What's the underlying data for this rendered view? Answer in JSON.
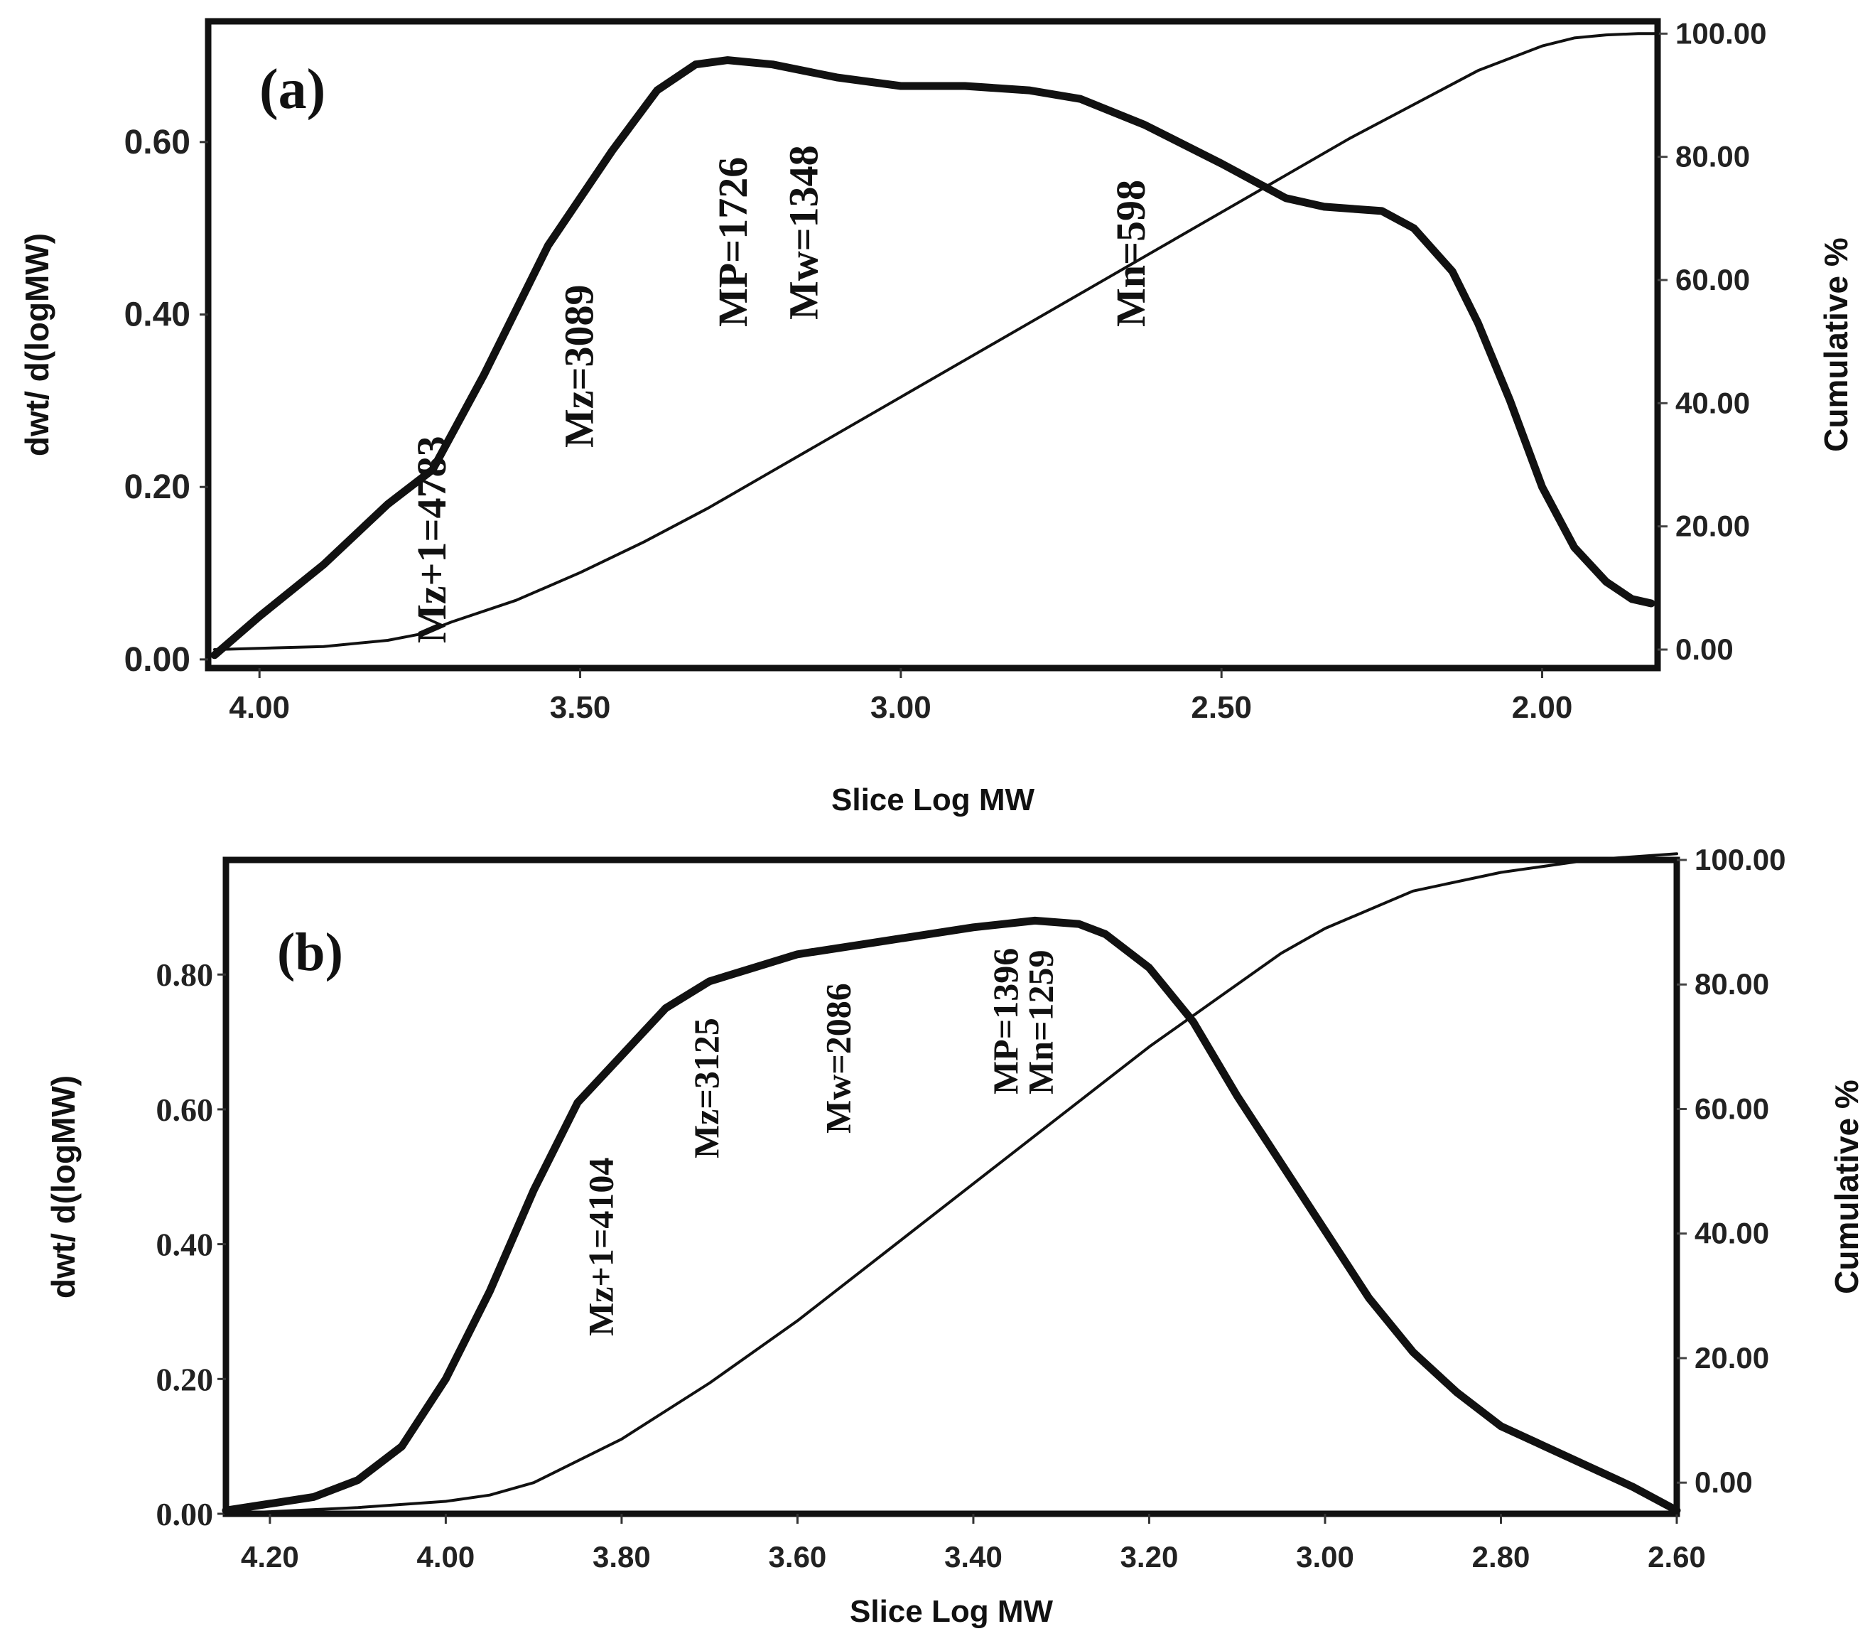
{
  "chart_data": [
    {
      "type": "line",
      "panel_label": "(a)",
      "xlabel": "Slice Log MW",
      "ylabel_left": "dwt/ d(logMW)",
      "ylabel_right": "Cumulative %",
      "xlim": [
        4.08,
        1.82
      ],
      "ylim_left": [
        -0.01,
        0.74
      ],
      "ylim_right": [
        -3,
        102
      ],
      "x_ticks": [
        "4.00",
        "3.50",
        "3.00",
        "2.50",
        "2.00"
      ],
      "y_left_ticks": [
        "0.00",
        "0.20",
        "0.40",
        "0.60"
      ],
      "y_right_ticks": [
        "0.00",
        "20.00",
        "40.00",
        "60.00",
        "80.00",
        "100.00"
      ],
      "series": [
        {
          "name": "dwt/d(logMW)",
          "axis": "left",
          "x": [
            4.07,
            4.0,
            3.9,
            3.8,
            3.73,
            3.65,
            3.55,
            3.45,
            3.38,
            3.32,
            3.27,
            3.2,
            3.1,
            3.0,
            2.9,
            2.8,
            2.72,
            2.62,
            2.5,
            2.4,
            2.34,
            2.25,
            2.2,
            2.14,
            2.1,
            2.05,
            2.0,
            1.95,
            1.9,
            1.86,
            1.83
          ],
          "y": [
            0.005,
            0.05,
            0.11,
            0.18,
            0.22,
            0.33,
            0.48,
            0.59,
            0.66,
            0.69,
            0.695,
            0.69,
            0.675,
            0.665,
            0.665,
            0.66,
            0.65,
            0.62,
            0.575,
            0.535,
            0.525,
            0.52,
            0.5,
            0.45,
            0.39,
            0.3,
            0.2,
            0.13,
            0.09,
            0.07,
            0.065
          ]
        },
        {
          "name": "Cumulative %",
          "axis": "right",
          "x": [
            4.07,
            3.9,
            3.8,
            3.75,
            3.7,
            3.6,
            3.5,
            3.4,
            3.3,
            3.2,
            3.1,
            3.0,
            2.9,
            2.8,
            2.7,
            2.6,
            2.5,
            2.4,
            2.3,
            2.2,
            2.1,
            2.0,
            1.95,
            1.9,
            1.85,
            1.82
          ],
          "y": [
            0.0,
            0.5,
            1.5,
            2.5,
            4.5,
            8.0,
            12.5,
            17.5,
            23.0,
            29.0,
            35.0,
            41.0,
            47.0,
            53.0,
            59.0,
            65.0,
            71.0,
            77.0,
            83.0,
            88.5,
            94.0,
            98.0,
            99.3,
            99.8,
            100.0,
            100.0
          ]
        }
      ],
      "annotations": [
        {
          "text": "Mz+1=4783",
          "x": 3.71
        },
        {
          "text": "Mz=3089",
          "x": 3.48
        },
        {
          "text": "MP=1726",
          "x": 3.24
        },
        {
          "text": "Mw=1348",
          "x": 3.13
        },
        {
          "text": "Mn=598",
          "x": 2.62
        }
      ]
    },
    {
      "type": "line",
      "panel_label": "(b)",
      "xlabel": "Slice Log MW",
      "ylabel_left": "dwt/ d(logMW)",
      "ylabel_right": "Cumulative %",
      "xlim": [
        4.25,
        2.6
      ],
      "ylim_left": [
        0.0,
        0.97
      ],
      "ylim_right": [
        -5,
        100
      ],
      "x_ticks": [
        "4.20",
        "4.00",
        "3.80",
        "3.60",
        "3.40",
        "3.20",
        "3.00",
        "2.80",
        "2.60"
      ],
      "y_left_ticks": [
        "0.00",
        "0.20",
        "0.40",
        "0.60",
        "0.80"
      ],
      "y_right_ticks": [
        "0.00",
        "20.00",
        "40.00",
        "60.00",
        "80.00",
        "100.00"
      ],
      "series": [
        {
          "name": "dwt/d(logMW)",
          "axis": "left",
          "x": [
            4.25,
            4.15,
            4.1,
            4.05,
            4.0,
            3.95,
            3.9,
            3.85,
            3.8,
            3.75,
            3.7,
            3.65,
            3.6,
            3.5,
            3.4,
            3.33,
            3.28,
            3.25,
            3.2,
            3.15,
            3.1,
            3.05,
            3.0,
            2.95,
            2.9,
            2.85,
            2.8,
            2.75,
            2.7,
            2.65,
            2.6
          ],
          "y": [
            0.005,
            0.025,
            0.05,
            0.1,
            0.2,
            0.33,
            0.48,
            0.61,
            0.68,
            0.75,
            0.79,
            0.81,
            0.83,
            0.85,
            0.87,
            0.88,
            0.875,
            0.86,
            0.81,
            0.73,
            0.62,
            0.52,
            0.42,
            0.32,
            0.24,
            0.18,
            0.13,
            0.1,
            0.07,
            0.04,
            0.005
          ]
        },
        {
          "name": "Cumulative %",
          "axis": "right",
          "x": [
            4.25,
            4.1,
            4.0,
            3.95,
            3.9,
            3.8,
            3.7,
            3.6,
            3.5,
            3.4,
            3.3,
            3.2,
            3.1,
            3.05,
            3.0,
            2.9,
            2.8,
            2.7,
            2.6
          ],
          "y": [
            -5.0,
            -4.0,
            -3.0,
            -2.0,
            0.0,
            7.0,
            16.0,
            26.0,
            37.0,
            48.0,
            59.0,
            70.0,
            80.0,
            85.0,
            89.0,
            95.0,
            98.0,
            100.0,
            101.0
          ]
        }
      ],
      "annotations": [
        {
          "text": "Mz+1=4104",
          "x": 3.81
        },
        {
          "text": "Mz=3125",
          "x": 3.69
        },
        {
          "text": "Mw=2086",
          "x": 3.54
        },
        {
          "text": "MP=1396",
          "x": 3.35
        },
        {
          "text": "Mn=1259",
          "x": 3.31
        }
      ]
    }
  ]
}
